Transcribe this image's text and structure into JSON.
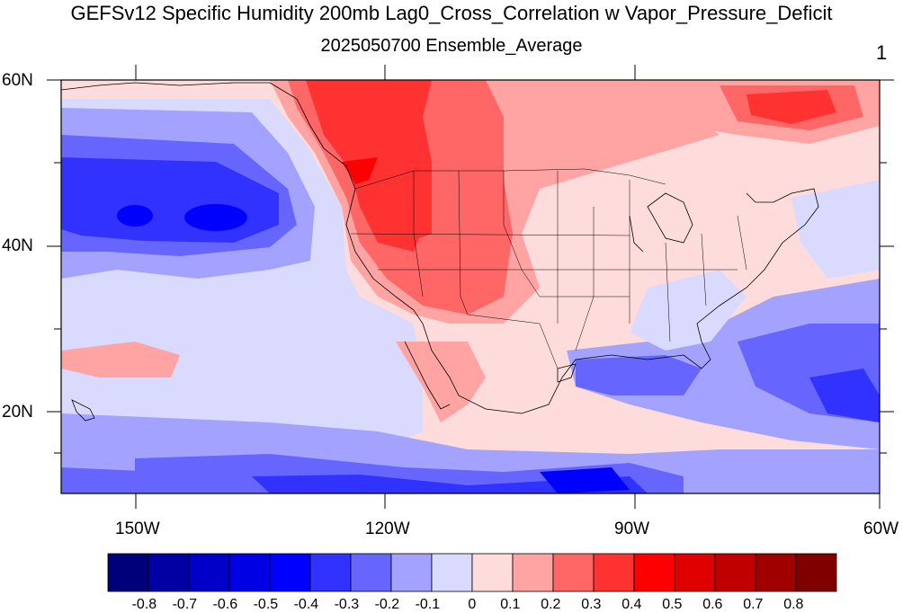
{
  "title": "GEFSv12 Specific Humidity 200mb Lag0_Cross_Correlation w Vapor_Pressure_Deficit",
  "subtitle": "2025050700 Ensemble_Average",
  "corner_label": "1",
  "lat_labels": [
    "60N",
    "40N",
    "20N"
  ],
  "lon_labels": [
    "150W",
    "120W",
    "90W",
    "60W"
  ],
  "colorbar": {
    "labels": [
      "-0.8",
      "-0.7",
      "-0.6",
      "-0.5",
      "-0.4",
      "-0.3",
      "-0.2",
      "-0.1",
      "0",
      "0.1",
      "0.2",
      "0.3",
      "0.4",
      "0.5",
      "0.6",
      "0.7",
      "0.8"
    ],
    "colors": [
      "#00007a",
      "#0000a3",
      "#0000c8",
      "#0000e4",
      "#0000ff",
      "#3232ff",
      "#6666ff",
      "#a3a3ff",
      "#dadaff",
      "#ffdcdc",
      "#ffa3a3",
      "#ff6666",
      "#ff3232",
      "#ff0000",
      "#e00000",
      "#c00000",
      "#a00000",
      "#800000"
    ]
  },
  "map_data": {
    "type": "filled-contour map",
    "projection": "cylindrical equidistant",
    "lon_range": [
      -159,
      -60
    ],
    "lat_range": [
      10,
      60
    ],
    "land_outline": "North America coastlines and US state boundaries",
    "field_summary": {
      "northeast Pacific Ocean": -0.45,
      "western United States": 0.35,
      "Pacific Northwest / British Columbia": 0.45,
      "northern Canada": 0.3,
      "Hudson Bay area": 0.45,
      "central United States": 0.05,
      "southeastern United States": -0.1,
      "Gulf of Mexico": -0.25,
      "western Atlantic": -0.2,
      "Caribbean": -0.3,
      "eastern tropical Pacific (south)": -0.4
    }
  }
}
